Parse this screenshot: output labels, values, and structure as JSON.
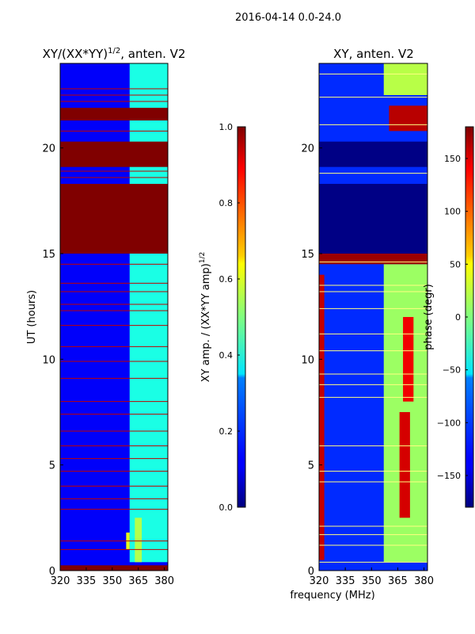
{
  "chart_data": {
    "type": "heatmap",
    "suptitle": "2016-04-14 0.0-24.0",
    "xlabel": "frequency (MHz)",
    "panels": [
      {
        "title_main": "XY/(XX*YY)",
        "title_sup": "1/2",
        "title_tail": ", anten. V2",
        "ylabel": "UT (hours)",
        "xlim": [
          320,
          382
        ],
        "ylim": [
          0,
          24
        ],
        "xticks": [
          "320",
          "335",
          "350",
          "365",
          "380"
        ],
        "xtick_values": [
          320,
          335,
          350,
          365,
          380
        ],
        "yticks": [
          "0",
          "5",
          "10",
          "15",
          "20"
        ],
        "ytick_values": [
          0,
          5,
          10,
          15,
          20
        ],
        "colorbar": {
          "label_main": "XY amp. / (XX*YY amp)",
          "label_sup": "1/2",
          "range": [
            0.0,
            1.0
          ],
          "ticks": [
            "0.0",
            "0.2",
            "0.4",
            "0.6",
            "0.8",
            "1.0"
          ],
          "tick_values": [
            0.0,
            0.2,
            0.4,
            0.6,
            0.8,
            1.0
          ]
        },
        "background_value": 0.12,
        "regions": [
          {
            "x0": 360,
            "x1": 382,
            "y0": 0.4,
            "y1": 24,
            "value": 0.4
          },
          {
            "x0": 363,
            "x1": 367,
            "y0": 0.4,
            "y1": 2.5,
            "value": 0.55
          },
          {
            "x0": 358,
            "x1": 360,
            "y0": 1.0,
            "y1": 1.8,
            "value": 0.6
          },
          {
            "x0": 320,
            "x1": 382,
            "y0": 15.0,
            "y1": 18.3,
            "value": 1.0
          },
          {
            "x0": 320,
            "x1": 382,
            "y0": 19.1,
            "y1": 20.3,
            "value": 1.0
          },
          {
            "x0": 320,
            "x1": 382,
            "y0": 21.3,
            "y1": 21.9,
            "value": 1.0
          },
          {
            "x0": 320,
            "x1": 382,
            "y0": 0.0,
            "y1": 0.25,
            "value": 1.0
          }
        ],
        "flag_lines": [
          1.0,
          1.4,
          2.9,
          3.4,
          4.0,
          4.7,
          5.3,
          5.9,
          6.6,
          7.4,
          8.0,
          9.1,
          9.9,
          10.6,
          11.6,
          12.3,
          12.6,
          13.2,
          13.6,
          14.5,
          18.6,
          18.9,
          20.8,
          22.2,
          22.5,
          22.8
        ]
      },
      {
        "title_main": "XY, anten. V2",
        "ylabel": "",
        "xlim": [
          320,
          382
        ],
        "ylim": [
          0,
          24
        ],
        "xticks": [
          "320",
          "335",
          "350",
          "365",
          "380"
        ],
        "xtick_values": [
          320,
          335,
          350,
          365,
          380
        ],
        "yticks": [
          "0",
          "5",
          "10",
          "15",
          "20"
        ],
        "ytick_values": [
          0,
          5,
          10,
          15,
          20
        ],
        "colorbar": {
          "label_main": "phase (degr)",
          "range": [
            -180,
            180
          ],
          "ticks": [
            "−150",
            "−100",
            "−50",
            "0",
            "50",
            "100",
            "150"
          ],
          "tick_values": [
            -150,
            -100,
            -50,
            0,
            50,
            100,
            150
          ]
        },
        "background_value": -120,
        "regions": [
          {
            "x0": 357,
            "x1": 382,
            "y0": 0.4,
            "y1": 14.5,
            "value": 10
          },
          {
            "x0": 366,
            "x1": 372,
            "y0": 2.5,
            "y1": 7.5,
            "value": 150
          },
          {
            "x0": 368,
            "x1": 374,
            "y0": 8.0,
            "y1": 12.0,
            "value": 140
          },
          {
            "x0": 320,
            "x1": 382,
            "y0": 14.5,
            "y1": 15.0,
            "value": 170
          },
          {
            "x0": 320,
            "x1": 323,
            "y0": 0.5,
            "y1": 14.0,
            "value": 155
          },
          {
            "x0": 320,
            "x1": 382,
            "y0": 15.0,
            "y1": 18.3,
            "value": -178
          },
          {
            "x0": 320,
            "x1": 382,
            "y0": 19.1,
            "y1": 20.3,
            "value": -178
          },
          {
            "x0": 360,
            "x1": 382,
            "y0": 20.8,
            "y1": 22.0,
            "value": 160
          },
          {
            "x0": 357,
            "x1": 382,
            "y0": 22.5,
            "y1": 24.0,
            "value": 20
          }
        ],
        "flag_lines": [
          0.4,
          1.2,
          1.7,
          2.1,
          4.2,
          4.7,
          5.9,
          8.2,
          8.8,
          9.3,
          10.4,
          11.2,
          12.4,
          13.2,
          13.5,
          14.6,
          18.8,
          21.1,
          22.4,
          23.5
        ]
      }
    ]
  }
}
